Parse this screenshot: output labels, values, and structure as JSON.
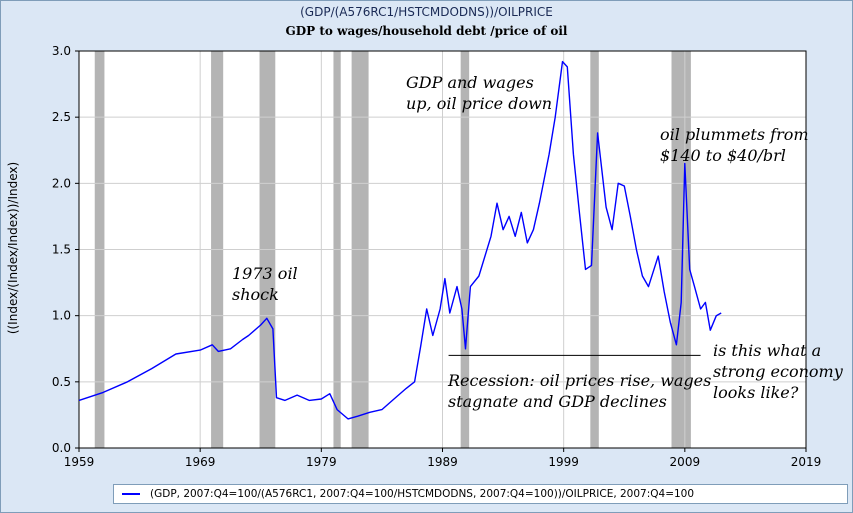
{
  "chart_data": {
    "type": "line",
    "title": "(GDP/(A576RC1/HSTCMDODNS))/OILPRICE",
    "subtitle": "GDP to wages/household debt /price of oil",
    "xlabel": "",
    "ylabel": "((Index/(Index/Index))/Index)",
    "xlim": [
      1959,
      2019
    ],
    "ylim": [
      0.0,
      3.0
    ],
    "x_ticks": [
      "1959",
      "1969",
      "1979",
      "1989",
      "1999",
      "2009",
      "2019"
    ],
    "y_ticks": [
      "0.0",
      "0.5",
      "1.0",
      "1.5",
      "2.0",
      "2.5",
      "3.0"
    ],
    "grid": true,
    "legend_position": "bottom",
    "colors": {
      "line": "#0000ff",
      "recession": "#b4b4b4",
      "plot_bg": "#ffffff",
      "frame_bg": "#dbe7f5"
    },
    "recessions": [
      [
        1960.3,
        1961.1
      ],
      [
        1969.9,
        1970.9
      ],
      [
        1973.9,
        1975.2
      ],
      [
        1980.0,
        1980.6
      ],
      [
        1981.5,
        1982.9
      ],
      [
        1990.5,
        1991.2
      ],
      [
        2001.2,
        2001.9
      ],
      [
        2007.9,
        2009.5
      ]
    ],
    "series": [
      {
        "name": "(GDP, 2007:Q4=100/(A576RC1, 2007:Q4=100/HSTCMDODNS, 2007:Q4=100))/OILPRICE, 2007:Q4=100",
        "points": [
          [
            1959.0,
            0.36
          ],
          [
            1961.0,
            0.42
          ],
          [
            1963.0,
            0.5
          ],
          [
            1965.0,
            0.6
          ],
          [
            1967.0,
            0.71
          ],
          [
            1969.0,
            0.74
          ],
          [
            1970.0,
            0.78
          ],
          [
            1970.5,
            0.73
          ],
          [
            1971.5,
            0.75
          ],
          [
            1972.5,
            0.82
          ],
          [
            1973.0,
            0.85
          ],
          [
            1974.0,
            0.93
          ],
          [
            1974.5,
            0.98
          ],
          [
            1975.0,
            0.9
          ],
          [
            1975.3,
            0.38
          ],
          [
            1976.0,
            0.36
          ],
          [
            1977.0,
            0.4
          ],
          [
            1978.0,
            0.36
          ],
          [
            1979.0,
            0.37
          ],
          [
            1979.7,
            0.41
          ],
          [
            1980.3,
            0.29
          ],
          [
            1981.2,
            0.22
          ],
          [
            1982.0,
            0.24
          ],
          [
            1983.0,
            0.27
          ],
          [
            1984.0,
            0.29
          ],
          [
            1985.0,
            0.37
          ],
          [
            1986.0,
            0.45
          ],
          [
            1986.7,
            0.5
          ],
          [
            1987.2,
            0.77
          ],
          [
            1987.7,
            1.05
          ],
          [
            1988.2,
            0.85
          ],
          [
            1988.8,
            1.05
          ],
          [
            1989.2,
            1.28
          ],
          [
            1989.6,
            1.02
          ],
          [
            1990.2,
            1.22
          ],
          [
            1990.6,
            1.05
          ],
          [
            1990.9,
            0.75
          ],
          [
            1991.3,
            1.22
          ],
          [
            1992.0,
            1.3
          ],
          [
            1993.0,
            1.6
          ],
          [
            1993.5,
            1.85
          ],
          [
            1994.0,
            1.65
          ],
          [
            1994.5,
            1.75
          ],
          [
            1995.0,
            1.6
          ],
          [
            1995.5,
            1.78
          ],
          [
            1996.0,
            1.55
          ],
          [
            1996.5,
            1.65
          ],
          [
            1997.0,
            1.85
          ],
          [
            1997.8,
            2.22
          ],
          [
            1998.3,
            2.5
          ],
          [
            1998.9,
            2.92
          ],
          [
            1999.3,
            2.88
          ],
          [
            1999.8,
            2.22
          ],
          [
            2000.3,
            1.78
          ],
          [
            2000.8,
            1.35
          ],
          [
            2001.3,
            1.38
          ],
          [
            2001.8,
            2.38
          ],
          [
            2002.5,
            1.82
          ],
          [
            2003.0,
            1.65
          ],
          [
            2003.5,
            2.0
          ],
          [
            2004.0,
            1.98
          ],
          [
            2004.5,
            1.75
          ],
          [
            2005.0,
            1.5
          ],
          [
            2005.5,
            1.3
          ],
          [
            2006.0,
            1.22
          ],
          [
            2006.8,
            1.45
          ],
          [
            2007.3,
            1.18
          ],
          [
            2007.8,
            0.95
          ],
          [
            2008.3,
            0.78
          ],
          [
            2008.7,
            1.1
          ],
          [
            2009.0,
            2.15
          ],
          [
            2009.4,
            1.35
          ],
          [
            2009.8,
            1.22
          ],
          [
            2010.3,
            1.05
          ],
          [
            2010.7,
            1.1
          ],
          [
            2011.1,
            0.89
          ],
          [
            2011.6,
            1.0
          ],
          [
            2012.0,
            1.02
          ]
        ]
      }
    ],
    "annotations": [
      {
        "id": "oil-shock",
        "text": "1973 oil shock"
      },
      {
        "id": "gdp-wages-up",
        "text": "GDP and wages up, oil price down"
      },
      {
        "id": "oil-plummets",
        "text": "oil plummets from $140 to $40/brl"
      },
      {
        "id": "recession-note",
        "text": "Recession: oil prices rise, wages stagnate and GDP declines"
      },
      {
        "id": "strong-economy",
        "text": "is this what a strong economy looks like?"
      }
    ],
    "annotation_lines": {
      "oil_shock": [
        "1973 oil",
        "shock"
      ],
      "gdp_up": [
        "GDP and wages",
        "up, oil price down"
      ],
      "oil_plummets": [
        "oil plummets from",
        "$140 to $40/brl"
      ],
      "recession": [
        "Recession: oil prices rise, wages",
        "stagnate and GDP declines"
      ],
      "strong": [
        "is this what a",
        "strong economy",
        "looks like?"
      ]
    },
    "reference_line": {
      "y": 0.7,
      "x": [
        1989.5,
        2010.3
      ]
    }
  }
}
